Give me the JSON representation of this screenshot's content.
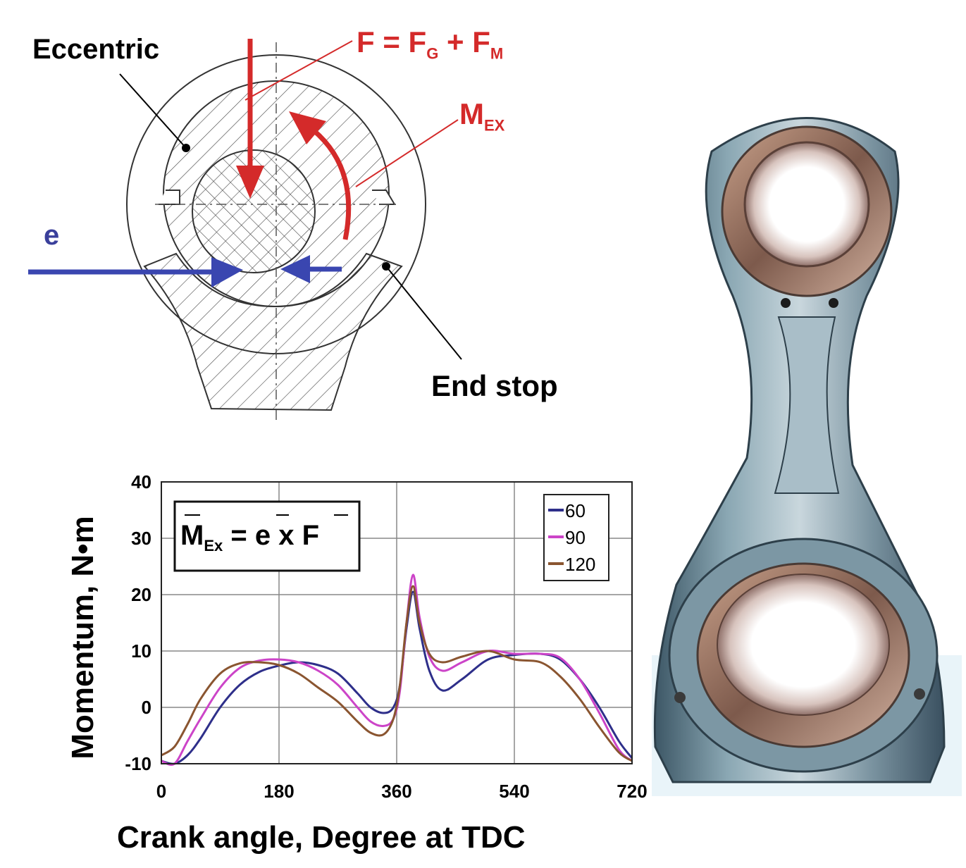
{
  "diagram": {
    "eccentric_label": "Eccentric",
    "end_stop_label": "End stop",
    "e_label": "e",
    "force_label": {
      "F": "F",
      "eq": " = ",
      "FG": "F",
      "G": "G",
      "plus": " + ",
      "FM": "F",
      "M": "M"
    },
    "moment_label": {
      "M": "M",
      "sub": "EX"
    },
    "colors": {
      "force": "#d42a2a",
      "eccentricity": "#3a46b0",
      "hatch": "#333333"
    }
  },
  "photo": {
    "subject": "connecting-rod-photo",
    "icon": "connecting-rod-icon"
  },
  "equation": {
    "M": "M",
    "sub": "Ex",
    "eq": " = ",
    "e": "e",
    "x": " x ",
    "F": "F"
  },
  "chart_data": {
    "type": "line",
    "xlabel": "Crank angle, Degree at TDC",
    "ylabel": "Momentum, N•m",
    "xlim": [
      0,
      720
    ],
    "ylim": [
      -10,
      40
    ],
    "xticks": [
      0,
      180,
      360,
      540,
      720
    ],
    "yticks": [
      -10,
      0,
      10,
      20,
      30,
      40
    ],
    "grid": true,
    "legend_position": "top-right",
    "series": [
      {
        "name": "60",
        "color": "#2e2f8a",
        "x": [
          0,
          20,
          40,
          60,
          90,
          120,
          150,
          180,
          210,
          240,
          270,
          300,
          320,
          340,
          355,
          365,
          375,
          385,
          395,
          410,
          430,
          460,
          500,
          540,
          580,
          610,
          640,
          670,
          700,
          720
        ],
        "y": [
          -9.5,
          -10,
          -8.5,
          -5.5,
          0,
          4,
          6.3,
          7.4,
          8,
          7.5,
          6,
          2.5,
          0,
          -1,
          0,
          4,
          14,
          20.5,
          14,
          6.5,
          3,
          5,
          8.5,
          9.3,
          9.5,
          8.5,
          5,
          0,
          -6,
          -9
        ]
      },
      {
        "name": "90",
        "color": "#cc44c8",
        "x": [
          0,
          20,
          40,
          60,
          90,
          120,
          150,
          180,
          210,
          240,
          270,
          300,
          320,
          340,
          355,
          365,
          375,
          385,
          395,
          410,
          430,
          460,
          500,
          540,
          580,
          610,
          640,
          670,
          700,
          720
        ],
        "y": [
          -9.5,
          -10,
          -6,
          -2,
          3.5,
          7,
          8.3,
          8.5,
          8,
          6.5,
          4,
          0,
          -2.5,
          -3.3,
          -2,
          3,
          15,
          23.5,
          16,
          9,
          6.5,
          8,
          10,
          9.5,
          9.5,
          8.8,
          5,
          -1,
          -7.5,
          -9.5
        ]
      },
      {
        "name": "120",
        "color": "#8a5530",
        "x": [
          0,
          20,
          40,
          60,
          90,
          120,
          150,
          180,
          210,
          240,
          270,
          300,
          320,
          340,
          355,
          365,
          375,
          385,
          395,
          410,
          430,
          460,
          500,
          540,
          580,
          610,
          640,
          670,
          700,
          720
        ],
        "y": [
          -8.5,
          -7,
          -3,
          1.5,
          6,
          7.8,
          8,
          7.5,
          6,
          3.5,
          1,
          -2.5,
          -4.5,
          -4.8,
          -2,
          4,
          15,
          21.5,
          15,
          9.5,
          8,
          9,
          10,
          8.5,
          8,
          5.5,
          1.5,
          -3.5,
          -8,
          -9.5
        ]
      }
    ]
  }
}
